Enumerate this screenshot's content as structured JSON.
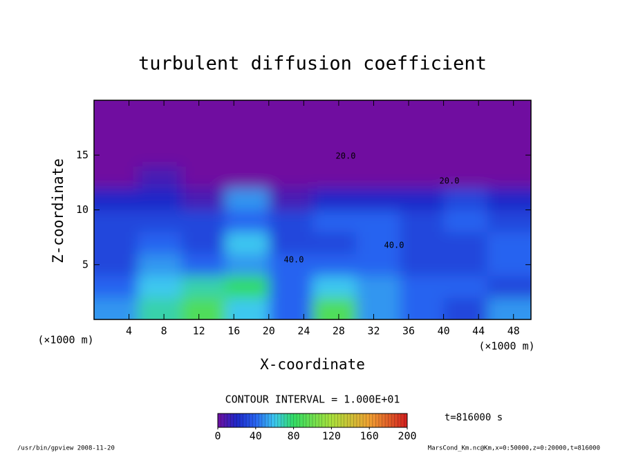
{
  "chart_data": {
    "type": "contour",
    "title": "turbulent diffusion coefficient",
    "xlabel": "X-coordinate",
    "ylabel": "Z-coordinate",
    "xunit_left": "(×1000 m)",
    "xunit_right": "(×1000 m)",
    "xlim": [
      0,
      50
    ],
    "ylim": [
      0,
      20
    ],
    "xticks": [
      4,
      8,
      12,
      16,
      20,
      24,
      28,
      32,
      36,
      40,
      44,
      48
    ],
    "yticks": [
      5,
      10,
      15
    ],
    "grid": {
      "x": [
        2.5,
        7.5,
        12.5,
        17.5,
        22.5,
        27.5,
        32.5,
        37.5,
        42.5,
        47.5
      ],
      "y": [
        1,
        3,
        5,
        7,
        9,
        11,
        13,
        15,
        17,
        19
      ],
      "values": [
        [
          50,
          70,
          90,
          60,
          40,
          90,
          50,
          40,
          30,
          50
        ],
        [
          40,
          60,
          70,
          80,
          40,
          60,
          50,
          40,
          40,
          30
        ],
        [
          30,
          50,
          40,
          50,
          40,
          40,
          40,
          30,
          30,
          40
        ],
        [
          30,
          40,
          30,
          60,
          30,
          30,
          40,
          30,
          30,
          40
        ],
        [
          30,
          30,
          30,
          40,
          30,
          40,
          40,
          30,
          40,
          30
        ],
        [
          20,
          20,
          10,
          50,
          10,
          20,
          20,
          20,
          30,
          20
        ],
        [
          0,
          10,
          0,
          0,
          0,
          0,
          0,
          0,
          0,
          0
        ],
        [
          0,
          0,
          0,
          0,
          0,
          0,
          0,
          0,
          0,
          0
        ],
        [
          0,
          0,
          0,
          0,
          0,
          0,
          0,
          0,
          0,
          0
        ],
        [
          0,
          0,
          0,
          0,
          0,
          0,
          0,
          0,
          0,
          0
        ]
      ]
    },
    "contour_labels": [
      {
        "value": 20,
        "label": "20.0"
      },
      {
        "value": 20,
        "label": "20.0"
      },
      {
        "value": 40,
        "label": "40.0"
      },
      {
        "value": 40,
        "label": "40.0"
      }
    ],
    "contour_interval": "CONTOUR INTERVAL = 1.000E+01",
    "colorbar": {
      "lim": [
        0,
        200
      ],
      "ticks": [
        0,
        40,
        80,
        120,
        160,
        200
      ]
    },
    "time_label": "t=816000 s",
    "footer_left": "/usr/bin/gpview  2008-11-20",
    "footer_right": "MarsCond_Km.nc@Km,x=0:50000,z=0:20000,t=816000"
  }
}
